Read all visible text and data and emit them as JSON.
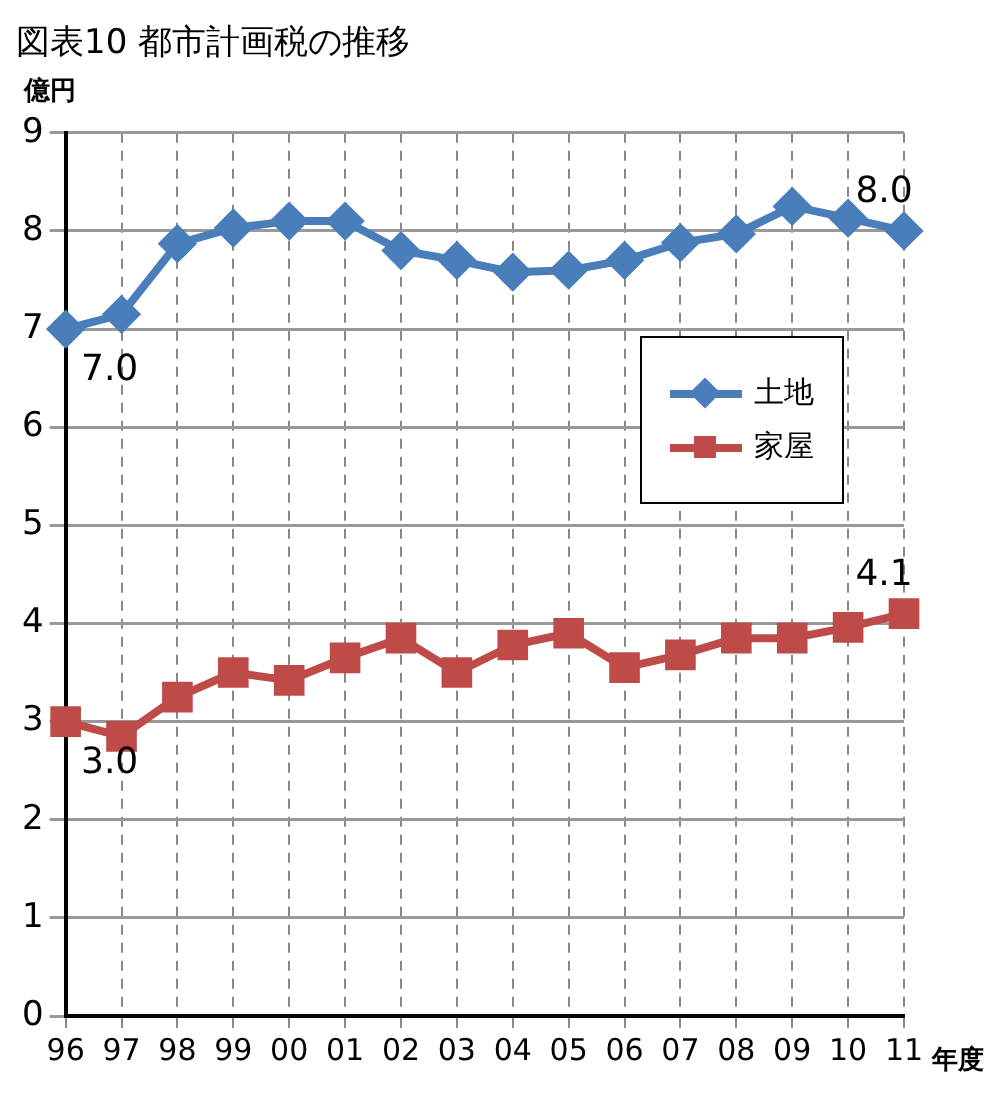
{
  "chart_data": {
    "type": "line",
    "title": "図表10 都市計画税の推移",
    "ylabel": "億円",
    "xlabel": "年度",
    "categories": [
      "96",
      "97",
      "98",
      "99",
      "00",
      "01",
      "02",
      "03",
      "04",
      "05",
      "06",
      "07",
      "08",
      "09",
      "10",
      "11"
    ],
    "series": [
      {
        "name": "土地",
        "color": "#4a7ebb",
        "marker": "diamond",
        "values": [
          7.0,
          7.15,
          7.87,
          8.03,
          8.1,
          8.1,
          7.8,
          7.7,
          7.58,
          7.6,
          7.7,
          7.88,
          7.97,
          8.25,
          8.13,
          8.0
        ],
        "value_labels": [
          "7.0",
          null,
          null,
          null,
          null,
          null,
          null,
          null,
          null,
          null,
          null,
          null,
          null,
          null,
          null,
          "8.0"
        ]
      },
      {
        "name": "家屋",
        "color": "#be4b48",
        "marker": "square",
        "values": [
          3.0,
          2.85,
          3.25,
          3.5,
          3.42,
          3.65,
          3.85,
          3.5,
          3.78,
          3.9,
          3.55,
          3.68,
          3.85,
          3.85,
          3.96,
          4.1
        ],
        "value_labels": [
          "3.0",
          null,
          null,
          null,
          null,
          null,
          null,
          null,
          null,
          null,
          null,
          null,
          null,
          null,
          null,
          "4.1"
        ]
      }
    ],
    "ylim": [
      0,
      9
    ],
    "yticks": [
      0,
      1,
      2,
      3,
      4,
      5,
      6,
      7,
      8,
      9
    ],
    "grid": true,
    "legend": "right"
  }
}
